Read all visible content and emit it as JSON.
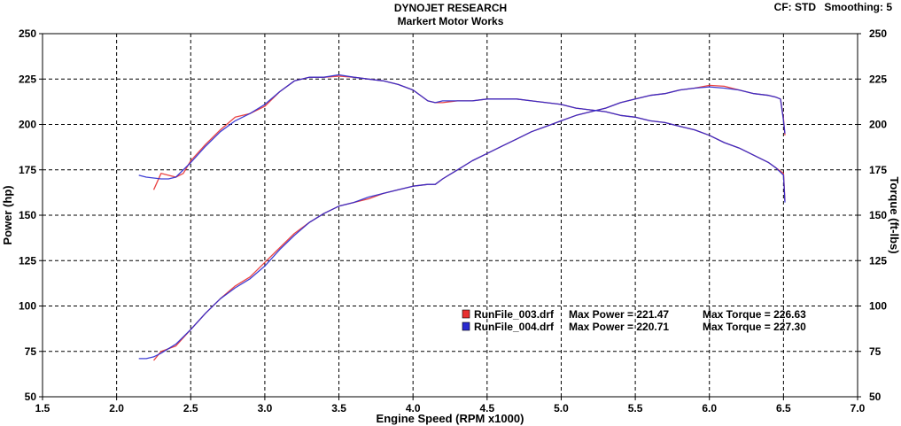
{
  "header": {
    "title": "DYNOJET RESEARCH",
    "subtitle": "Markert Motor Works",
    "cf": "CF: STD",
    "smoothing": "Smoothing: 5"
  },
  "colors": {
    "run1": "#e83030",
    "run2": "#2a2ad0",
    "grid": "#000000",
    "background": "#ffffff"
  },
  "chart_data": {
    "type": "line",
    "xlabel": "Engine Speed (RPM x1000)",
    "ylabel_left": "Power (hp)",
    "ylabel_right": "Torque (ft-lbs)",
    "xlim": [
      1.5,
      7.0
    ],
    "ylim": [
      50,
      250
    ],
    "x_ticks": [
      "1.5",
      "2.0",
      "2.5",
      "3.0",
      "3.5",
      "4.0",
      "4.5",
      "5.0",
      "5.5",
      "6.0",
      "6.5",
      "7.0"
    ],
    "y_ticks": [
      "50",
      "75",
      "100",
      "125",
      "150",
      "175",
      "200",
      "225",
      "250"
    ],
    "y_ticks_right": [
      "50",
      "75",
      "100",
      "125",
      "150",
      "175",
      "200",
      "225",
      "250"
    ],
    "grid": true,
    "legend": [
      {
        "file": "RunFile_003.drf",
        "power_text": "Max Power = 221.47",
        "torque_text": "Max Torque = 226.63",
        "color_key": "run1"
      },
      {
        "file": "RunFile_004.drf",
        "power_text": "Max Power = 220.71",
        "torque_text": "Max Torque = 227.30",
        "color_key": "run2"
      }
    ],
    "series": [
      {
        "name": "RunFile_003.drf",
        "color_key": "run1",
        "kind": "power",
        "points": [
          [
            2.25,
            70
          ],
          [
            2.3,
            75
          ],
          [
            2.4,
            78
          ],
          [
            2.5,
            87
          ],
          [
            2.6,
            96
          ],
          [
            2.7,
            104
          ],
          [
            2.8,
            111
          ],
          [
            2.9,
            116
          ],
          [
            3.0,
            124
          ],
          [
            3.1,
            132
          ],
          [
            3.2,
            140
          ],
          [
            3.3,
            146
          ],
          [
            3.4,
            151
          ],
          [
            3.5,
            155
          ],
          [
            3.6,
            157
          ],
          [
            3.7,
            159
          ],
          [
            3.8,
            162
          ],
          [
            3.9,
            164
          ],
          [
            4.0,
            166
          ],
          [
            4.1,
            167
          ],
          [
            4.15,
            167
          ],
          [
            4.2,
            170
          ],
          [
            4.3,
            175
          ],
          [
            4.4,
            180
          ],
          [
            4.5,
            184
          ],
          [
            4.6,
            188
          ],
          [
            4.7,
            192
          ],
          [
            4.8,
            196
          ],
          [
            4.9,
            199
          ],
          [
            5.0,
            202
          ],
          [
            5.1,
            205
          ],
          [
            5.2,
            207
          ],
          [
            5.3,
            209
          ],
          [
            5.4,
            212
          ],
          [
            5.5,
            214
          ],
          [
            5.6,
            216
          ],
          [
            5.7,
            217
          ],
          [
            5.8,
            219
          ],
          [
            5.9,
            220
          ],
          [
            6.0,
            221.5
          ],
          [
            6.1,
            221
          ],
          [
            6.2,
            219
          ],
          [
            6.3,
            217
          ],
          [
            6.4,
            216
          ],
          [
            6.45,
            215
          ],
          [
            6.48,
            214
          ],
          [
            6.5,
            203
          ],
          [
            6.51,
            194
          ]
        ]
      },
      {
        "name": "RunFile_003.drf",
        "color_key": "run1",
        "kind": "torque",
        "points": [
          [
            2.25,
            164
          ],
          [
            2.3,
            173
          ],
          [
            2.4,
            171
          ],
          [
            2.45,
            173
          ],
          [
            2.5,
            180
          ],
          [
            2.6,
            189
          ],
          [
            2.7,
            197
          ],
          [
            2.8,
            204
          ],
          [
            2.9,
            206
          ],
          [
            3.0,
            210
          ],
          [
            3.1,
            218
          ],
          [
            3.2,
            224
          ],
          [
            3.3,
            226
          ],
          [
            3.4,
            226
          ],
          [
            3.5,
            226.6
          ],
          [
            3.6,
            226
          ],
          [
            3.7,
            225
          ],
          [
            3.8,
            224
          ],
          [
            3.9,
            222
          ],
          [
            4.0,
            219
          ],
          [
            4.1,
            213
          ],
          [
            4.15,
            212
          ],
          [
            4.2,
            212
          ],
          [
            4.3,
            213
          ],
          [
            4.4,
            213
          ],
          [
            4.5,
            214
          ],
          [
            4.6,
            214
          ],
          [
            4.7,
            214
          ],
          [
            4.8,
            213
          ],
          [
            4.9,
            212
          ],
          [
            5.0,
            211
          ],
          [
            5.1,
            209
          ],
          [
            5.2,
            208
          ],
          [
            5.3,
            207
          ],
          [
            5.4,
            205
          ],
          [
            5.5,
            204
          ],
          [
            5.6,
            202
          ],
          [
            5.7,
            201
          ],
          [
            5.8,
            199
          ],
          [
            5.9,
            197
          ],
          [
            6.0,
            194
          ],
          [
            6.1,
            190
          ],
          [
            6.2,
            187
          ],
          [
            6.3,
            183
          ],
          [
            6.4,
            179
          ],
          [
            6.45,
            176
          ],
          [
            6.5,
            173
          ],
          [
            6.51,
            158
          ]
        ]
      },
      {
        "name": "RunFile_004.drf",
        "color_key": "run2",
        "kind": "power",
        "points": [
          [
            2.15,
            71
          ],
          [
            2.2,
            71
          ],
          [
            2.25,
            72
          ],
          [
            2.3,
            74
          ],
          [
            2.4,
            79
          ],
          [
            2.5,
            87
          ],
          [
            2.6,
            96
          ],
          [
            2.7,
            104
          ],
          [
            2.8,
            110
          ],
          [
            2.9,
            115
          ],
          [
            3.0,
            122
          ],
          [
            3.1,
            131
          ],
          [
            3.2,
            139
          ],
          [
            3.3,
            146
          ],
          [
            3.4,
            151
          ],
          [
            3.5,
            155
          ],
          [
            3.6,
            157
          ],
          [
            3.7,
            160
          ],
          [
            3.8,
            162
          ],
          [
            3.9,
            164
          ],
          [
            4.0,
            166
          ],
          [
            4.1,
            167
          ],
          [
            4.15,
            167
          ],
          [
            4.2,
            170
          ],
          [
            4.3,
            175
          ],
          [
            4.4,
            180
          ],
          [
            4.5,
            184
          ],
          [
            4.6,
            188
          ],
          [
            4.7,
            192
          ],
          [
            4.8,
            196
          ],
          [
            4.9,
            199
          ],
          [
            5.0,
            202
          ],
          [
            5.1,
            205
          ],
          [
            5.2,
            207
          ],
          [
            5.3,
            209
          ],
          [
            5.4,
            212
          ],
          [
            5.5,
            214
          ],
          [
            5.6,
            216
          ],
          [
            5.7,
            217
          ],
          [
            5.8,
            219
          ],
          [
            5.9,
            220
          ],
          [
            6.0,
            220.7
          ],
          [
            6.1,
            220
          ],
          [
            6.2,
            219
          ],
          [
            6.3,
            217
          ],
          [
            6.4,
            216
          ],
          [
            6.45,
            215
          ],
          [
            6.48,
            214
          ],
          [
            6.5,
            202
          ],
          [
            6.51,
            195
          ]
        ]
      },
      {
        "name": "RunFile_004.drf",
        "color_key": "run2",
        "kind": "torque",
        "points": [
          [
            2.15,
            172
          ],
          [
            2.2,
            171
          ],
          [
            2.3,
            170
          ],
          [
            2.35,
            170
          ],
          [
            2.4,
            171
          ],
          [
            2.5,
            179
          ],
          [
            2.6,
            188
          ],
          [
            2.7,
            196
          ],
          [
            2.8,
            202
          ],
          [
            2.9,
            206
          ],
          [
            3.0,
            211
          ],
          [
            3.1,
            218
          ],
          [
            3.2,
            224
          ],
          [
            3.3,
            226
          ],
          [
            3.4,
            226
          ],
          [
            3.5,
            227.3
          ],
          [
            3.6,
            226
          ],
          [
            3.7,
            225
          ],
          [
            3.8,
            224
          ],
          [
            3.9,
            222
          ],
          [
            4.0,
            219
          ],
          [
            4.1,
            213
          ],
          [
            4.15,
            212
          ],
          [
            4.2,
            213
          ],
          [
            4.3,
            213
          ],
          [
            4.4,
            213
          ],
          [
            4.5,
            214
          ],
          [
            4.6,
            214
          ],
          [
            4.7,
            214
          ],
          [
            4.8,
            213
          ],
          [
            4.9,
            212
          ],
          [
            5.0,
            211
          ],
          [
            5.1,
            209
          ],
          [
            5.2,
            208
          ],
          [
            5.3,
            207
          ],
          [
            5.4,
            205
          ],
          [
            5.5,
            204
          ],
          [
            5.6,
            202
          ],
          [
            5.7,
            201
          ],
          [
            5.8,
            199
          ],
          [
            5.9,
            197
          ],
          [
            6.0,
            194
          ],
          [
            6.1,
            190
          ],
          [
            6.2,
            187
          ],
          [
            6.3,
            183
          ],
          [
            6.4,
            179
          ],
          [
            6.45,
            176
          ],
          [
            6.5,
            172
          ],
          [
            6.51,
            157
          ]
        ]
      }
    ]
  }
}
